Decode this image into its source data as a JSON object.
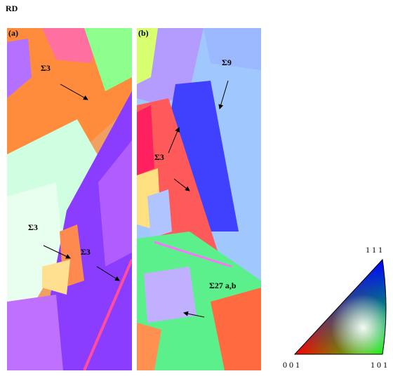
{
  "header": {
    "label": "RD"
  },
  "panels": [
    {
      "label": "(a)",
      "annotations": [
        "Σ3",
        "Σ3",
        "Σ3"
      ]
    },
    {
      "label": "(b)",
      "annotations": [
        "Σ9",
        "Σ3",
        "Σ27 a,b"
      ]
    }
  ],
  "legend": {
    "corners": [
      "1 1 1",
      "0 0 1",
      "1 0 1"
    ]
  }
}
